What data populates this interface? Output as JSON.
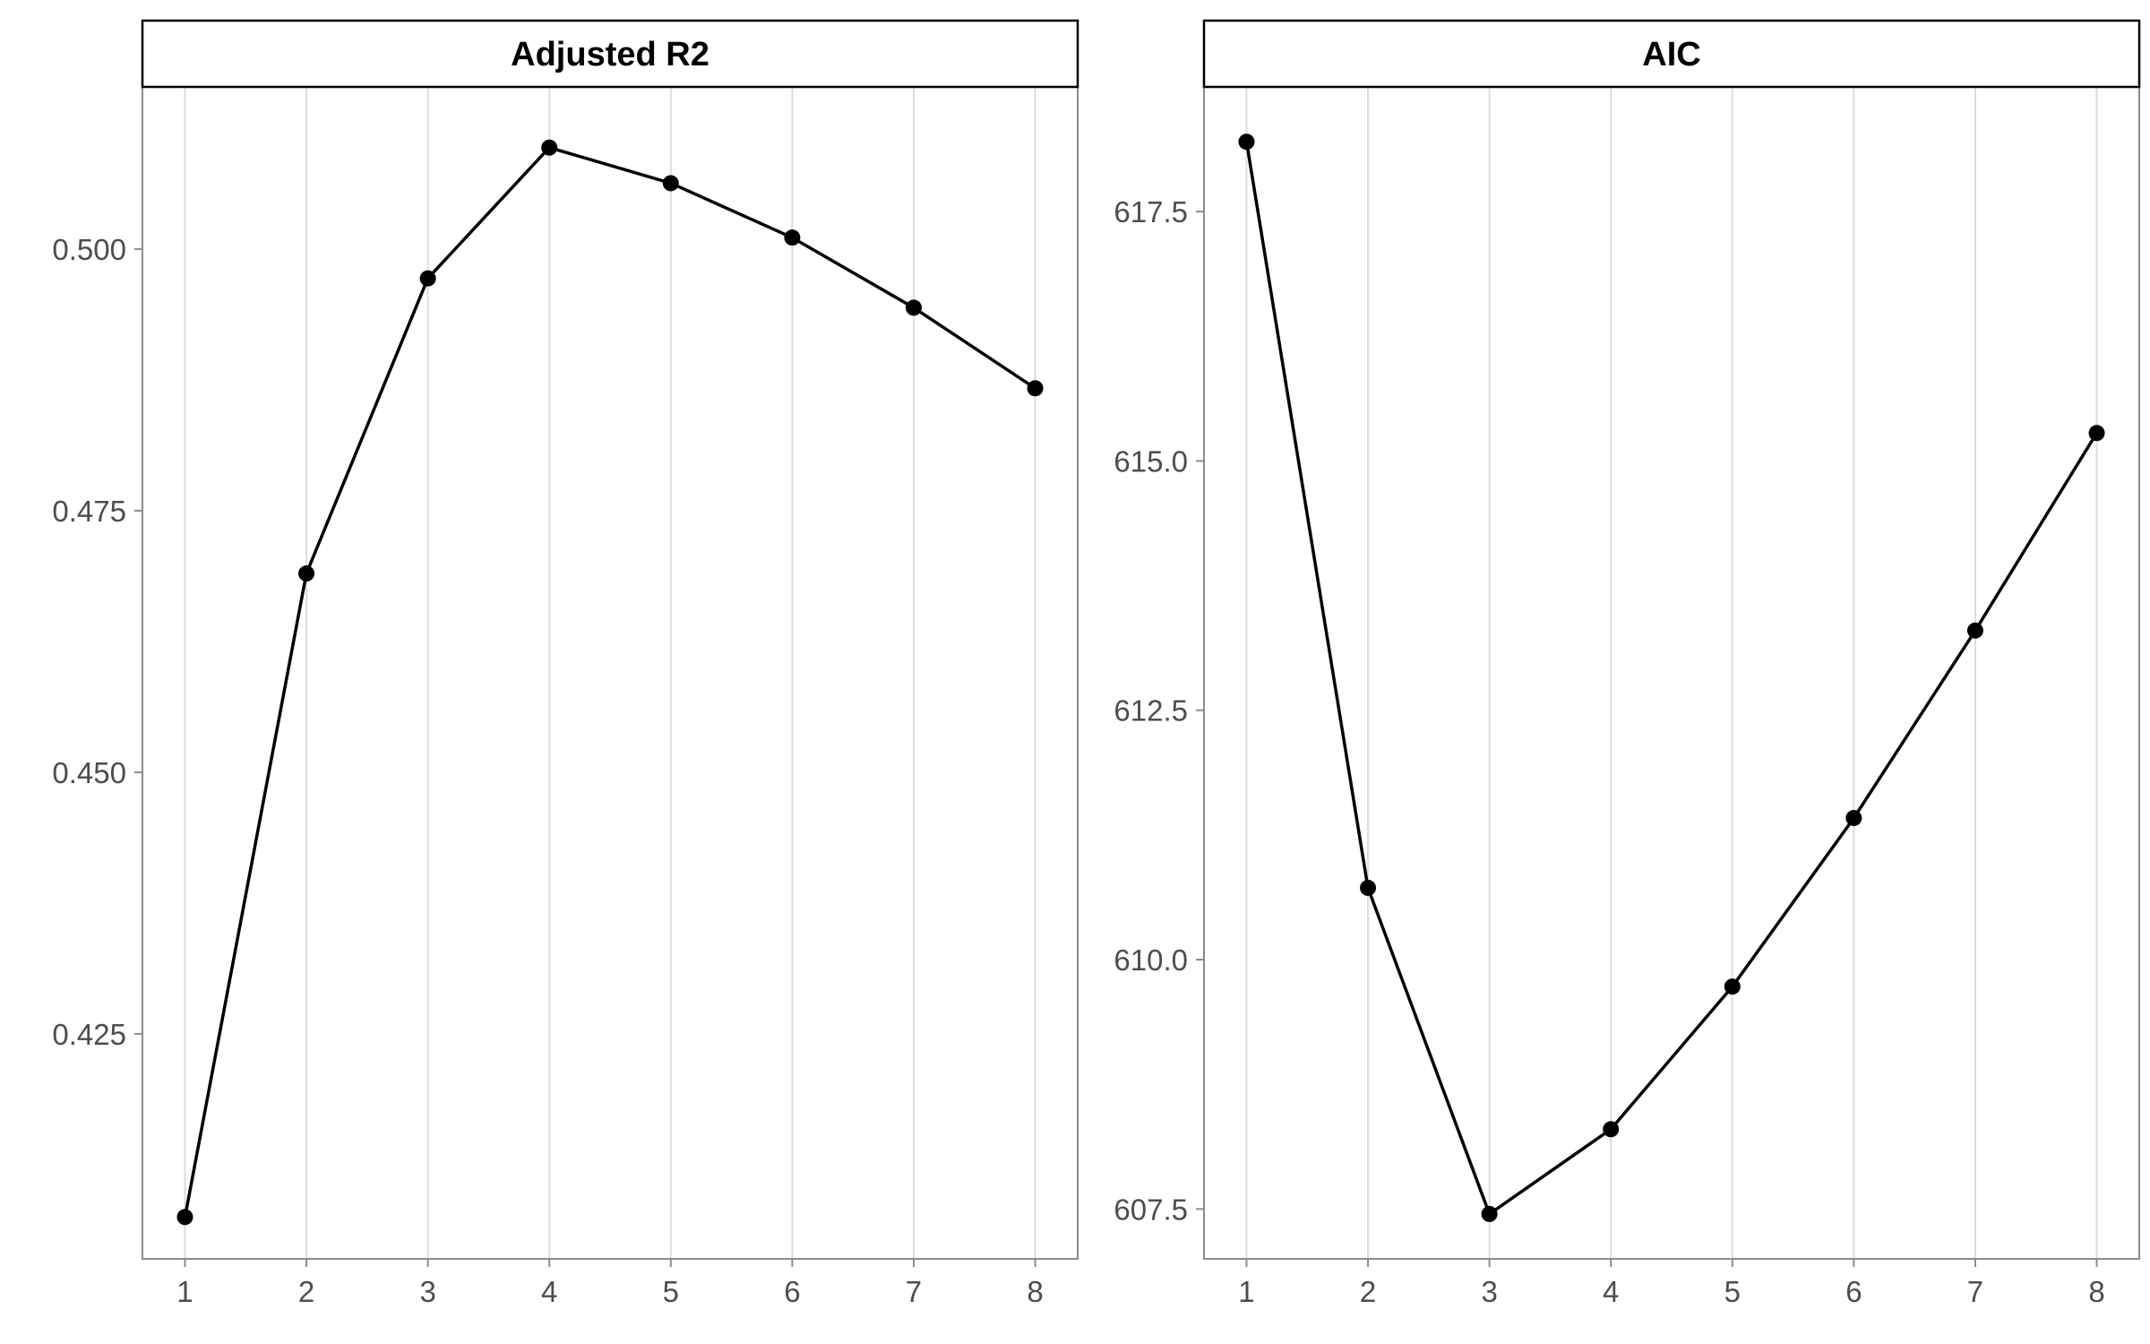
{
  "chart_data": [
    {
      "type": "line",
      "title": "Adjusted R2",
      "xlabel": "",
      "ylabel": "",
      "x": [
        1,
        2,
        3,
        4,
        5,
        6,
        7,
        8
      ],
      "y": [
        0.4075,
        0.469,
        0.4972,
        0.5097,
        0.5063,
        0.5011,
        0.4944,
        0.4867
      ],
      "xlim": [
        0.65,
        8.35
      ],
      "ylim": [
        0.4035,
        0.5155
      ],
      "xticks": [
        1,
        2,
        3,
        4,
        5,
        6,
        7,
        8
      ],
      "yticks": [
        0.425,
        0.45,
        0.475,
        0.5
      ],
      "ytick_labels": [
        "0.425",
        "0.450",
        "0.475",
        "0.500"
      ],
      "grid": "vertical",
      "markers": true,
      "color": "#000000"
    },
    {
      "type": "line",
      "title": "AIC",
      "xlabel": "",
      "ylabel": "",
      "x": [
        1,
        2,
        3,
        4,
        5,
        6,
        7,
        8
      ],
      "y": [
        618.2,
        610.72,
        607.45,
        608.3,
        609.73,
        611.42,
        613.3,
        615.28
      ],
      "xlim": [
        0.65,
        8.35
      ],
      "ylim": [
        607.0,
        618.75
      ],
      "xticks": [
        1,
        2,
        3,
        4,
        5,
        6,
        7,
        8
      ],
      "yticks": [
        607.5,
        610.0,
        612.5,
        615.0,
        617.5
      ],
      "ytick_labels": [
        "607.5",
        "610.0",
        "612.5",
        "615.0",
        "617.5"
      ],
      "grid": "vertical",
      "markers": true,
      "color": "#000000"
    }
  ]
}
